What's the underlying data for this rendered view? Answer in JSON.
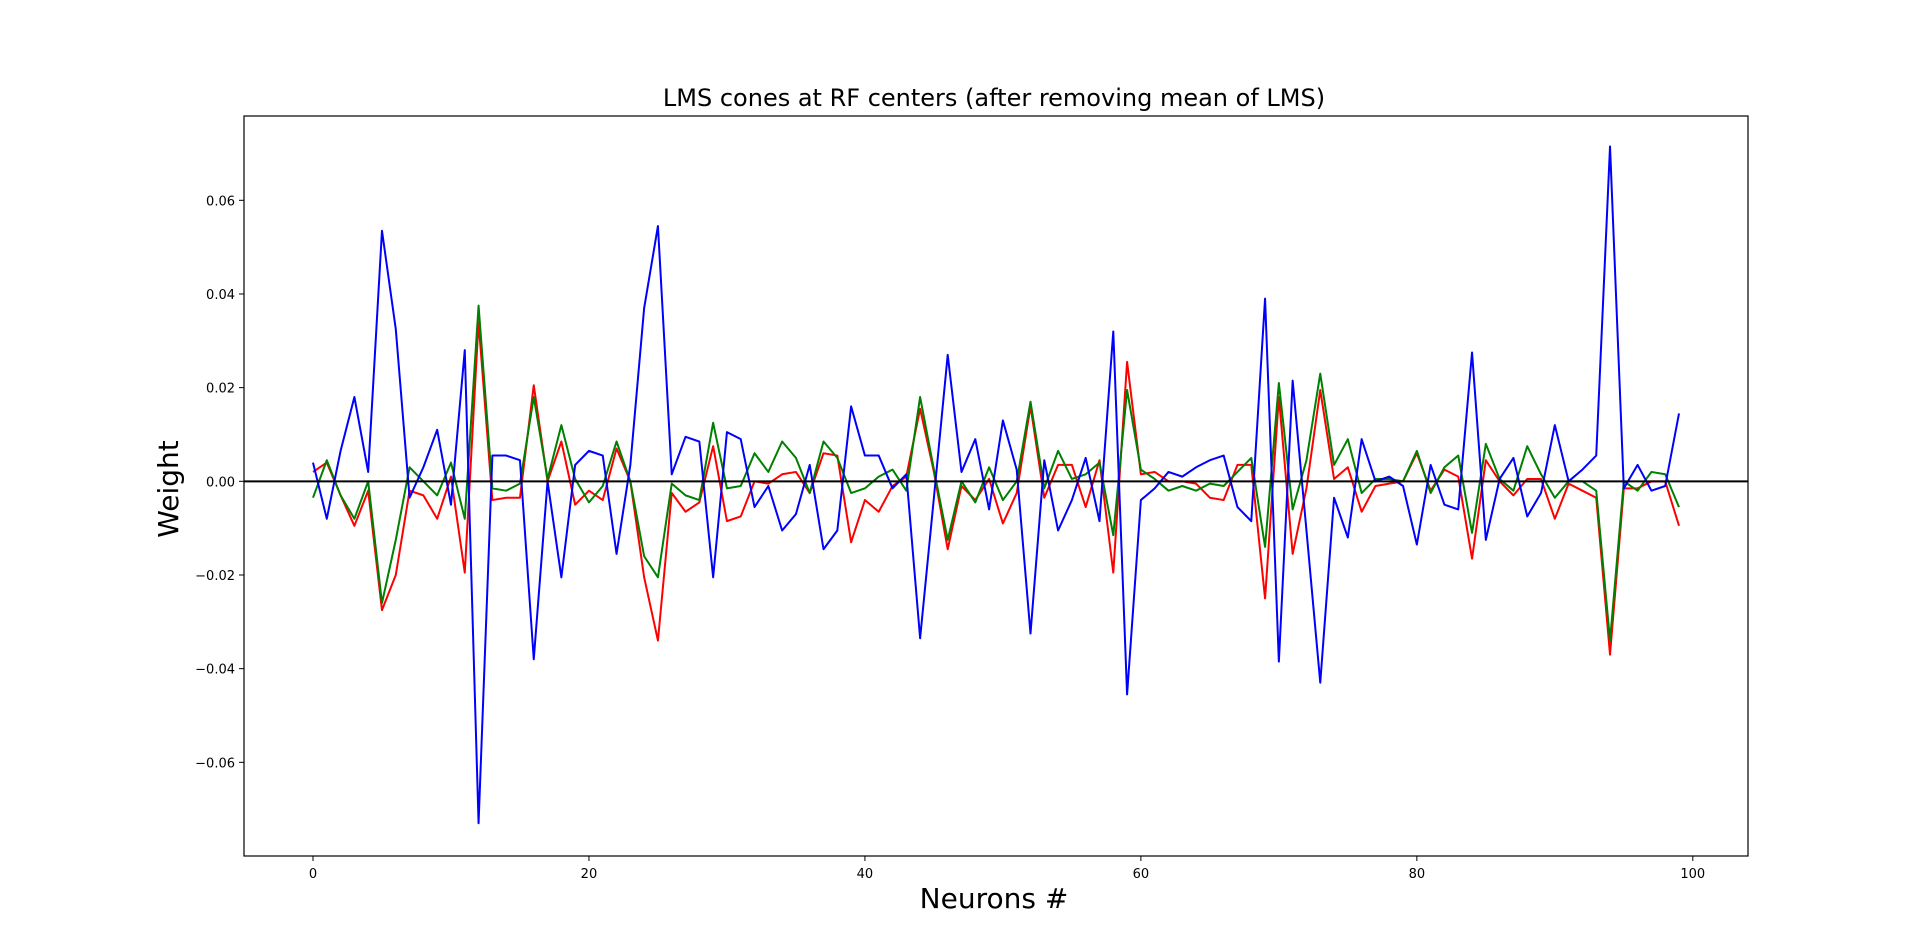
{
  "chart_data": {
    "type": "line",
    "title": "LMS cones at RF centers (after removing mean of LMS)",
    "xlabel": "Neurons #",
    "ylabel": "Weight",
    "xlim": [
      -5,
      104
    ],
    "ylim": [
      -0.08,
      0.078
    ],
    "xticks": [
      0,
      20,
      40,
      60,
      80,
      100
    ],
    "yticks": [
      -0.06,
      -0.04,
      -0.02,
      0.0,
      0.02,
      0.04,
      0.06
    ],
    "ytick_labels": [
      "−0.06",
      "−0.04",
      "−0.02",
      "0.00",
      "0.02",
      "0.04",
      "0.06"
    ],
    "xtick_labels": [
      "0",
      "20",
      "40",
      "60",
      "80",
      "100"
    ],
    "grid": false,
    "reference_line": {
      "y": 0,
      "color": "#000000"
    },
    "series": [
      {
        "color": "#ff0000",
        "values": [
          0.002,
          0.004,
          -0.003,
          -0.0095,
          -0.002,
          -0.0275,
          -0.02,
          -0.002,
          -0.003,
          -0.008,
          0.001,
          -0.0195,
          0.034,
          -0.004,
          -0.0035,
          -0.0035,
          0.0205,
          0.0,
          0.0085,
          -0.005,
          -0.002,
          -0.004,
          0.007,
          0.0,
          -0.0205,
          -0.034,
          -0.0025,
          -0.0065,
          -0.0045,
          0.0075,
          -0.0085,
          -0.0075,
          0.0,
          -0.0005,
          0.0015,
          0.002,
          -0.0025,
          0.006,
          0.0055,
          -0.013,
          -0.004,
          -0.0065,
          -0.001,
          0.001,
          0.0155,
          0.002,
          -0.0145,
          -0.001,
          -0.004,
          0.0005,
          -0.009,
          -0.0025,
          0.016,
          -0.0035,
          0.0035,
          0.0035,
          -0.0055,
          0.0045,
          -0.0195,
          0.0255,
          0.0015,
          0.002,
          0.0,
          0.0,
          -0.0005,
          -0.0035,
          -0.004,
          0.0035,
          0.0035,
          -0.025,
          0.018,
          -0.0155,
          -0.0015,
          0.0195,
          0.0005,
          0.003,
          -0.0065,
          -0.001,
          -0.0005,
          0.0,
          0.006,
          -0.002,
          0.0025,
          0.001,
          -0.0165,
          0.0045,
          0.0,
          -0.003,
          0.0005,
          0.0005,
          -0.008,
          -0.0005,
          -0.002,
          -0.0035,
          -0.037,
          -0.0015,
          -0.0015,
          0.0,
          0.0,
          -0.0095
        ]
      },
      {
        "color": "#008000",
        "values": [
          -0.0035,
          0.0045,
          -0.003,
          -0.008,
          0.0,
          -0.026,
          -0.0125,
          0.003,
          0.0,
          -0.003,
          0.004,
          -0.008,
          0.0375,
          -0.0015,
          -0.002,
          -0.0005,
          0.018,
          0.0005,
          0.012,
          0.0005,
          -0.0045,
          -0.001,
          0.0085,
          0.0,
          -0.016,
          -0.0205,
          -0.0005,
          -0.003,
          -0.004,
          0.0125,
          -0.0015,
          -0.001,
          0.006,
          0.002,
          0.0085,
          0.005,
          -0.0025,
          0.0085,
          0.005,
          -0.0025,
          -0.0015,
          0.001,
          0.0025,
          -0.002,
          0.018,
          0.0025,
          -0.0125,
          0.0,
          -0.0045,
          0.003,
          -0.004,
          0.0,
          0.017,
          -0.0015,
          0.0065,
          0.0005,
          0.0015,
          0.004,
          -0.0115,
          0.0195,
          0.0025,
          0.0005,
          -0.002,
          -0.001,
          -0.002,
          -0.0005,
          -0.001,
          0.002,
          0.005,
          -0.014,
          0.021,
          -0.006,
          0.0045,
          0.023,
          0.0035,
          0.009,
          -0.0025,
          0.0005,
          0.0005,
          0.0,
          0.0065,
          -0.0025,
          0.003,
          0.0055,
          -0.011,
          0.008,
          0.0005,
          -0.002,
          0.0075,
          0.0015,
          -0.0035,
          0.0,
          0.0,
          -0.002,
          -0.034,
          0.0,
          -0.002,
          0.002,
          0.0015,
          -0.0055
        ]
      },
      {
        "color": "#0000ff",
        "values": [
          0.004,
          -0.008,
          0.0065,
          0.018,
          0.002,
          0.0535,
          0.0325,
          -0.0035,
          0.003,
          0.011,
          -0.005,
          0.028,
          -0.073,
          0.0055,
          0.0055,
          0.0045,
          -0.038,
          0.0,
          -0.0205,
          0.0035,
          0.0065,
          0.0055,
          -0.0155,
          0.0035,
          0.037,
          0.0545,
          0.0015,
          0.0095,
          0.0085,
          -0.0205,
          0.0105,
          0.009,
          -0.0055,
          -0.001,
          -0.0105,
          -0.007,
          0.0035,
          -0.0145,
          -0.0105,
          0.016,
          0.0055,
          0.0055,
          -0.0015,
          0.0015,
          -0.0335,
          -0.0035,
          0.027,
          0.002,
          0.009,
          -0.006,
          0.013,
          0.0025,
          -0.0325,
          0.0045,
          -0.0105,
          -0.004,
          0.005,
          -0.0085,
          0.032,
          -0.0455,
          -0.004,
          -0.0015,
          0.002,
          0.001,
          0.003,
          0.0045,
          0.0055,
          -0.0055,
          -0.0085,
          0.039,
          -0.0385,
          0.0215,
          -0.0105,
          -0.043,
          -0.0035,
          -0.012,
          0.009,
          0.0,
          0.001,
          -0.001,
          -0.0135,
          0.0035,
          -0.005,
          -0.006,
          0.0275,
          -0.0125,
          0.0005,
          0.005,
          -0.0075,
          -0.0025,
          0.012,
          0.0,
          0.0025,
          0.0055,
          0.0715,
          -0.0015,
          0.0035,
          -0.002,
          -0.001,
          0.0145
        ]
      }
    ]
  }
}
